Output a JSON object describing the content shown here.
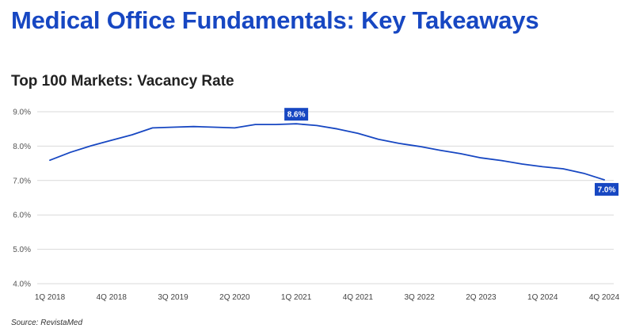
{
  "header": {
    "title": "Medical Office Fundamentals: Key Takeaways"
  },
  "source": "Source: RevistaMed",
  "colors": {
    "accent": "#1747c2",
    "grid": "#d9d9d9"
  },
  "chart_data": {
    "type": "line",
    "title": "Top 100 Markets: Vacancy Rate",
    "xlabel": "",
    "ylabel": "",
    "ylim": [
      4.0,
      9.0
    ],
    "yticks": [
      4.0,
      5.0,
      6.0,
      7.0,
      8.0,
      9.0
    ],
    "ytick_format": "%",
    "grid": true,
    "legend": "none",
    "x": [
      "1Q 2018",
      "2Q 2018",
      "3Q 2018",
      "4Q 2018",
      "1Q 2019",
      "2Q 2019",
      "3Q 2019",
      "4Q 2019",
      "1Q 2020",
      "2Q 2020",
      "3Q 2020",
      "4Q 2020",
      "1Q 2021",
      "2Q 2021",
      "3Q 2021",
      "4Q 2021",
      "1Q 2022",
      "2Q 2022",
      "3Q 2022",
      "4Q 2022",
      "1Q 2023",
      "2Q 2023",
      "3Q 2023",
      "4Q 2023",
      "1Q 2024",
      "2Q 2024",
      "3Q 2024",
      "4Q 2024"
    ],
    "xtick_labels": [
      "1Q 2018",
      "4Q 2018",
      "3Q 2019",
      "2Q 2020",
      "1Q 2021",
      "4Q 2021",
      "3Q 2022",
      "2Q 2023",
      "1Q 2024",
      "4Q 2024"
    ],
    "series": [
      {
        "values": [
          7.59,
          7.82,
          8.01,
          8.17,
          8.33,
          8.53,
          8.55,
          8.57,
          8.55,
          8.53,
          8.63,
          8.63,
          8.65,
          8.6,
          8.5,
          8.37,
          8.2,
          8.08,
          7.99,
          7.88,
          7.78,
          7.66,
          7.58,
          7.48,
          7.4,
          7.34,
          7.21,
          7.02
        ]
      }
    ],
    "annotations": [
      {
        "x": "1Q 2021",
        "text": "8.6%"
      },
      {
        "x": "4Q 2024",
        "text": "7.0%"
      }
    ]
  }
}
